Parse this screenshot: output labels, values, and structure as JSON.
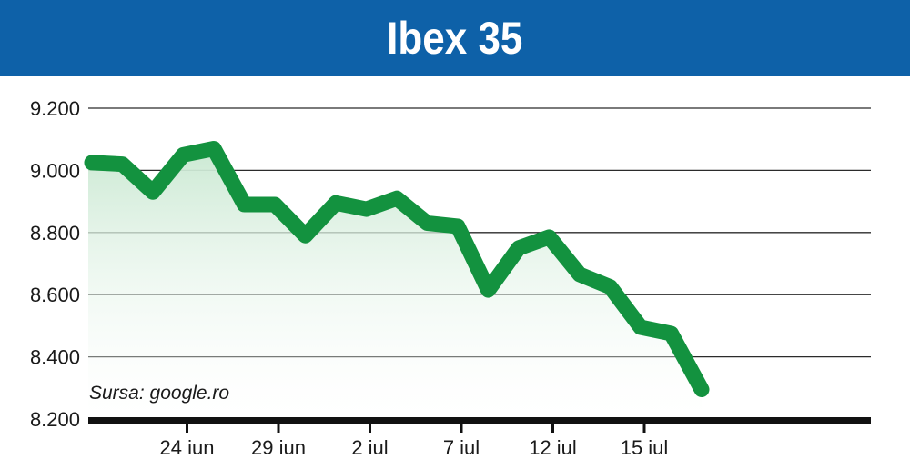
{
  "chart_data": {
    "type": "line",
    "title": "Ibex 35",
    "source": "Sursa: google.ro",
    "xlabel": "",
    "ylabel": "",
    "ylim": [
      8200,
      9200
    ],
    "yticks": [
      9200,
      9000,
      8800,
      8600,
      8400,
      8200
    ],
    "ytick_labels": [
      "9.200",
      "9.000",
      "8.800",
      "8.600",
      "8.400",
      "8.200"
    ],
    "xtick_labels": [
      {
        "label": "24 iun",
        "index": 3
      },
      {
        "label": "29 iun",
        "index": 6
      },
      {
        "label": "2 iul",
        "index": 9
      },
      {
        "label": "7 iul",
        "index": 12
      },
      {
        "label": "12 iul",
        "index": 15
      },
      {
        "label": "15 iul",
        "index": 18
      }
    ],
    "grid": true,
    "series": [
      {
        "values": [
          9025,
          9020,
          8930,
          9050,
          9070,
          8890,
          8890,
          8790,
          8895,
          8875,
          8910,
          8830,
          8820,
          8615,
          8750,
          8785,
          8665,
          8625,
          8495,
          8475,
          8295
        ]
      }
    ],
    "colors": {
      "line": "#13923f",
      "fill_top": "#cbe9d3",
      "header": "#0e61a8",
      "grid": "#2b2b2b"
    }
  }
}
